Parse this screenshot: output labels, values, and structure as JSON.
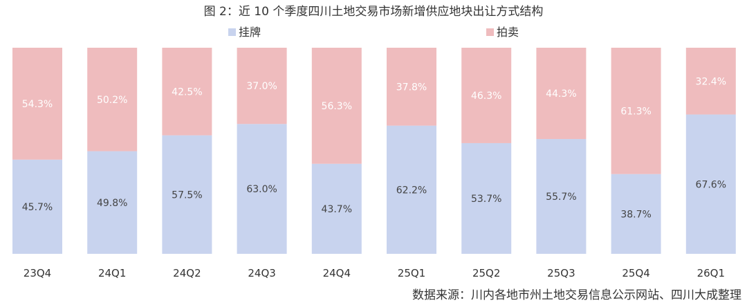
{
  "title": "图 2：近 10 个季度四川土地交易市场新增供应地块出让方式结构",
  "source": "数据来源：川内各地市州土地交易信息公示网站、四川大成整理",
  "chart_data": {
    "type": "bar",
    "stacked": true,
    "categories": [
      "23Q4",
      "24Q1",
      "24Q2",
      "24Q3",
      "24Q4",
      "25Q1",
      "25Q2",
      "25Q3",
      "25Q4",
      "26Q1"
    ],
    "series": [
      {
        "name": "挂牌",
        "color": "#c8d3ee",
        "values": [
          45.7,
          49.8,
          57.5,
          63.0,
          43.7,
          62.2,
          53.7,
          55.7,
          38.7,
          67.6
        ],
        "labels": [
          "45.7%",
          "49.8%",
          "57.5%",
          "63.0%",
          "43.7%",
          "62.2%",
          "53.7%",
          "55.7%",
          "38.7%",
          "67.6%"
        ]
      },
      {
        "name": "拍卖",
        "color": "#efbcbe",
        "values": [
          54.3,
          50.2,
          42.5,
          37.0,
          56.3,
          37.8,
          46.3,
          44.3,
          61.3,
          32.4
        ],
        "labels": [
          "54.3%",
          "50.2%",
          "42.5%",
          "37.0%",
          "56.3%",
          "37.8%",
          "46.3%",
          "44.3%",
          "61.3%",
          "32.4%"
        ]
      }
    ],
    "ylim": [
      0,
      100
    ],
    "legend_position": "top",
    "grid": false,
    "label_color": "#444444",
    "label_color_on_red": "#ffffff"
  }
}
